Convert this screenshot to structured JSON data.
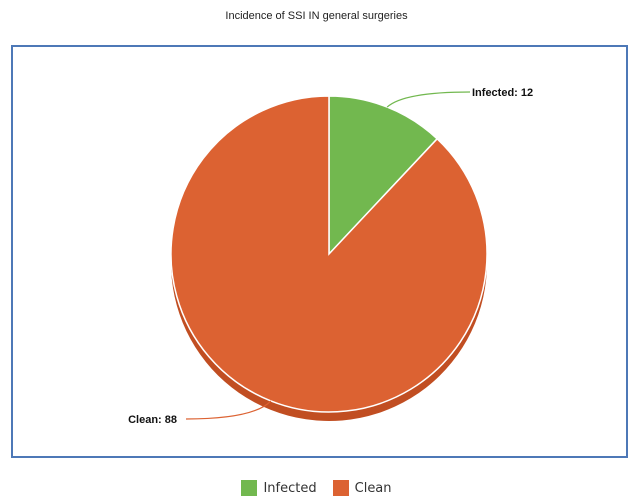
{
  "chart_data": {
    "type": "pie",
    "title": "Incidence of SSI IN general surgeries",
    "categories": [
      "Infected",
      "Clean"
    ],
    "values": [
      12,
      88
    ],
    "data_labels": [
      "Infected: 12",
      "Clean: 88"
    ],
    "colors": {
      "Infected": "#72b84f",
      "Clean": "#dc6232",
      "Clean_depth": "#c14e22",
      "Infected_depth": "#5a9a3c",
      "frame_border": "#4d78b7"
    },
    "legend": {
      "position": "bottom-center",
      "entries": [
        "Infected",
        "Clean"
      ]
    }
  }
}
